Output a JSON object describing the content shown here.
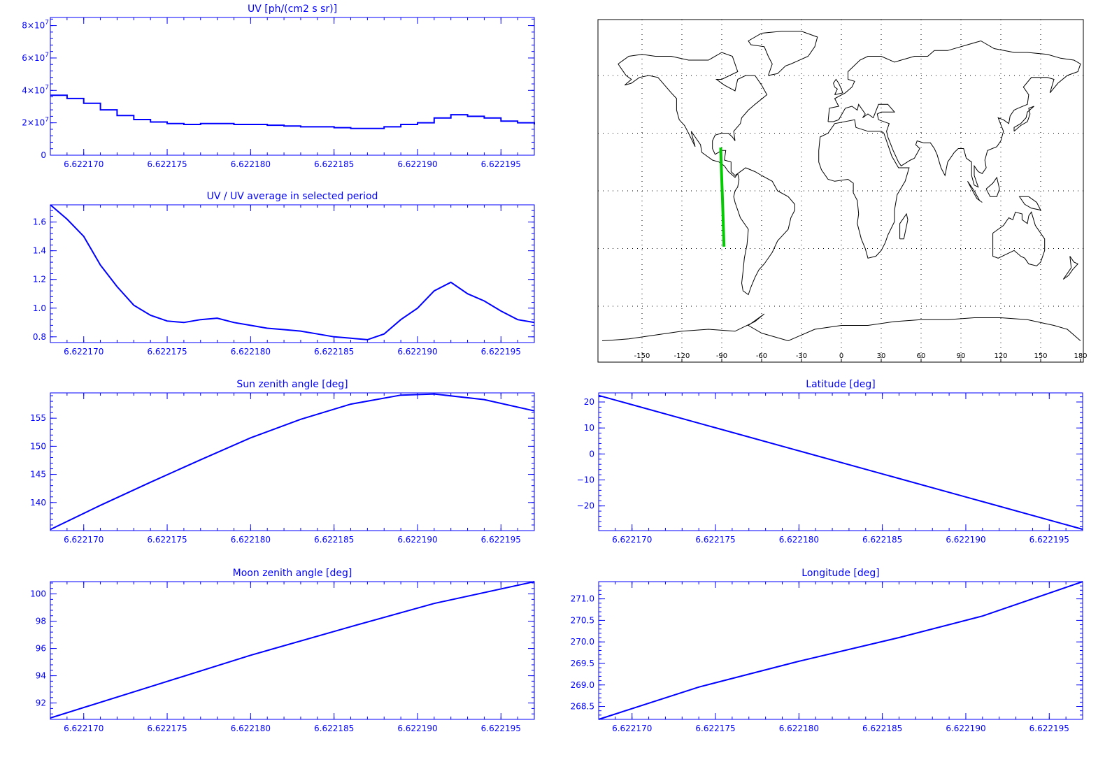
{
  "chart_data": [
    {
      "id": "uv",
      "type": "line",
      "title": "UV [ph/(cm2 s sr)]",
      "xlabel": "",
      "ylabel": "",
      "xlim": [
        6.622168,
        6.622197
      ],
      "ylim": [
        0,
        85000000.0
      ],
      "x_ticks": [
        "6.622170",
        "6.622175",
        "6.622180",
        "6.622185",
        "6.622190",
        "6.622195"
      ],
      "x_tick_values": [
        6.62217,
        6.622175,
        6.62218,
        6.622185,
        6.62219,
        6.622195
      ],
      "y_ticks": [
        {
          "value": 0,
          "base": "0",
          "exp": ""
        },
        {
          "value": 20000000.0,
          "base": "2×10",
          "exp": "7"
        },
        {
          "value": 40000000.0,
          "base": "4×10",
          "exp": "7"
        },
        {
          "value": 60000000.0,
          "base": "6×10",
          "exp": "7"
        },
        {
          "value": 80000000.0,
          "base": "8×10",
          "exp": "7"
        }
      ],
      "x": [
        6.622168,
        6.622169,
        6.62217,
        6.622171,
        6.622172,
        6.622173,
        6.622174,
        6.622175,
        6.622176,
        6.622177,
        6.622178,
        6.622179,
        6.62218,
        6.622181,
        6.622182,
        6.622183,
        6.622184,
        6.622185,
        6.622186,
        6.622187,
        6.622188,
        6.622189,
        6.62219,
        6.622191,
        6.622192,
        6.622193,
        6.622194,
        6.622195,
        6.622196,
        6.622197
      ],
      "y": [
        37000000.0,
        35000000.0,
        32000000.0,
        28000000.0,
        24500000.0,
        22000000.0,
        20500000.0,
        19500000.0,
        19000000.0,
        19500000.0,
        19500000.0,
        19000000.0,
        19000000.0,
        18500000.0,
        18000000.0,
        17500000.0,
        17500000.0,
        17000000.0,
        16500000.0,
        16500000.0,
        17500000.0,
        19000000.0,
        20000000.0,
        23000000.0,
        25000000.0,
        24000000.0,
        23000000.0,
        21000000.0,
        20000000.0,
        19000000.0
      ],
      "step": true,
      "grid": false
    },
    {
      "id": "uv_ratio",
      "type": "line",
      "title": "UV / UV average in selected period",
      "xlabel": "",
      "ylabel": "",
      "xlim": [
        6.622168,
        6.622197
      ],
      "ylim": [
        0.76,
        1.72
      ],
      "x_ticks": [
        "6.622170",
        "6.622175",
        "6.622180",
        "6.622185",
        "6.622190",
        "6.622195"
      ],
      "x_tick_values": [
        6.62217,
        6.622175,
        6.62218,
        6.622185,
        6.62219,
        6.622195
      ],
      "y_ticks": [
        {
          "value": 0.8,
          "base": "0.8",
          "exp": ""
        },
        {
          "value": 1.0,
          "base": "1.0",
          "exp": ""
        },
        {
          "value": 1.2,
          "base": "1.2",
          "exp": ""
        },
        {
          "value": 1.4,
          "base": "1.4",
          "exp": ""
        },
        {
          "value": 1.6,
          "base": "1.6",
          "exp": ""
        }
      ],
      "x": [
        6.622168,
        6.622169,
        6.62217,
        6.622171,
        6.622172,
        6.622173,
        6.622174,
        6.622175,
        6.622176,
        6.622177,
        6.622178,
        6.622179,
        6.62218,
        6.622181,
        6.622182,
        6.622183,
        6.622184,
        6.622185,
        6.622186,
        6.622187,
        6.622188,
        6.622189,
        6.62219,
        6.622191,
        6.622192,
        6.622193,
        6.622194,
        6.622195,
        6.622196,
        6.622197
      ],
      "y": [
        1.72,
        1.62,
        1.5,
        1.3,
        1.15,
        1.02,
        0.95,
        0.91,
        0.9,
        0.92,
        0.93,
        0.9,
        0.88,
        0.86,
        0.85,
        0.84,
        0.82,
        0.8,
        0.79,
        0.78,
        0.82,
        0.92,
        1.0,
        1.12,
        1.18,
        1.1,
        1.05,
        0.98,
        0.92,
        0.9
      ],
      "step": false,
      "grid": false
    },
    {
      "id": "sun_zenith",
      "type": "line",
      "title": "Sun zenith angle [deg]",
      "xlabel": "",
      "ylabel": "",
      "xlim": [
        6.622168,
        6.622197
      ],
      "ylim": [
        135,
        159.5
      ],
      "x_ticks": [
        "6.622170",
        "6.622175",
        "6.622180",
        "6.622185",
        "6.622190",
        "6.622195"
      ],
      "x_tick_values": [
        6.62217,
        6.622175,
        6.62218,
        6.622185,
        6.62219,
        6.622195
      ],
      "y_ticks": [
        {
          "value": 140,
          "base": "140",
          "exp": ""
        },
        {
          "value": 145,
          "base": "145",
          "exp": ""
        },
        {
          "value": 150,
          "base": "150",
          "exp": ""
        },
        {
          "value": 155,
          "base": "155",
          "exp": ""
        }
      ],
      "x": [
        6.622168,
        6.622171,
        6.622174,
        6.622177,
        6.62218,
        6.622183,
        6.622186,
        6.622189,
        6.622191,
        6.622194,
        6.622197
      ],
      "y": [
        135.2,
        139.5,
        143.6,
        147.6,
        151.5,
        154.8,
        157.5,
        159.1,
        159.3,
        158.3,
        156.3
      ],
      "step": false,
      "grid": false
    },
    {
      "id": "latitude",
      "type": "line",
      "title": "Latitude [deg]",
      "xlabel": "",
      "ylabel": "",
      "xlim": [
        6.622168,
        6.622197
      ],
      "ylim": [
        -29.5,
        23.5
      ],
      "x_ticks": [
        "6.622170",
        "6.622175",
        "6.622180",
        "6.622185",
        "6.622190",
        "6.622195"
      ],
      "x_tick_values": [
        6.62217,
        6.622175,
        6.62218,
        6.622185,
        6.62219,
        6.622195
      ],
      "y_ticks": [
        {
          "value": -20,
          "base": "−20",
          "exp": ""
        },
        {
          "value": -10,
          "base": "−10",
          "exp": ""
        },
        {
          "value": 0,
          "base": "0",
          "exp": ""
        },
        {
          "value": 10,
          "base": "10",
          "exp": ""
        },
        {
          "value": 20,
          "base": "20",
          "exp": ""
        }
      ],
      "x": [
        6.622168,
        6.622197
      ],
      "y": [
        22.5,
        -29.0
      ],
      "step": false,
      "grid": false
    },
    {
      "id": "moon_zenith",
      "type": "line",
      "title": "Moon zenith angle [deg]",
      "xlabel": "",
      "ylabel": "",
      "xlim": [
        6.622168,
        6.622197
      ],
      "ylim": [
        90.8,
        100.9
      ],
      "x_ticks": [
        "6.622170",
        "6.622175",
        "6.622180",
        "6.622185",
        "6.622190",
        "6.622195"
      ],
      "x_tick_values": [
        6.62217,
        6.622175,
        6.62218,
        6.622185,
        6.62219,
        6.622195
      ],
      "y_ticks": [
        {
          "value": 92,
          "base": "92",
          "exp": ""
        },
        {
          "value": 94,
          "base": "94",
          "exp": ""
        },
        {
          "value": 96,
          "base": "96",
          "exp": ""
        },
        {
          "value": 98,
          "base": "98",
          "exp": ""
        },
        {
          "value": 100,
          "base": "100",
          "exp": ""
        }
      ],
      "x": [
        6.622168,
        6.622174,
        6.62218,
        6.622186,
        6.622191,
        6.622197
      ],
      "y": [
        90.9,
        93.2,
        95.5,
        97.6,
        99.3,
        100.9
      ],
      "step": false,
      "grid": false
    },
    {
      "id": "longitude",
      "type": "line",
      "title": "Longitude [deg]",
      "xlabel": "",
      "ylabel": "",
      "xlim": [
        6.622168,
        6.622197
      ],
      "ylim": [
        268.2,
        271.4
      ],
      "x_ticks": [
        "6.622170",
        "6.622175",
        "6.622180",
        "6.622185",
        "6.622190",
        "6.622195"
      ],
      "x_tick_values": [
        6.62217,
        6.622175,
        6.62218,
        6.622185,
        6.62219,
        6.622195
      ],
      "y_ticks": [
        {
          "value": 268.5,
          "base": "268.5",
          "exp": ""
        },
        {
          "value": 269.0,
          "base": "269.0",
          "exp": ""
        },
        {
          "value": 269.5,
          "base": "269.5",
          "exp": ""
        },
        {
          "value": 270.0,
          "base": "270.0",
          "exp": ""
        },
        {
          "value": 270.5,
          "base": "270.5",
          "exp": ""
        },
        {
          "value": 271.0,
          "base": "271.0",
          "exp": ""
        }
      ],
      "x": [
        6.622168,
        6.622174,
        6.62218,
        6.622186,
        6.622191,
        6.622197
      ],
      "y": [
        268.2,
        268.95,
        269.55,
        270.1,
        270.6,
        271.4
      ],
      "step": false,
      "grid": false
    }
  ],
  "map": {
    "type": "map",
    "grid": true,
    "x_ticks": [
      "-150",
      "-120",
      "-90",
      "-60",
      "-30",
      "0",
      "30",
      "60",
      "90",
      "120",
      "150",
      "180"
    ],
    "x_tick_values": [
      -150,
      -120,
      -90,
      -60,
      -30,
      0,
      30,
      60,
      90,
      120,
      150,
      180
    ],
    "xlim": [
      -180,
      180
    ],
    "ylim": [
      -90,
      90
    ],
    "track_color": "#00cc00",
    "coast_color": "#000000",
    "track": [
      {
        "lon": -90.8,
        "lat": 22.5
      },
      {
        "lon": -90.2,
        "lat": 10.0
      },
      {
        "lon": -89.6,
        "lat": -2.0
      },
      {
        "lon": -89.0,
        "lat": -14.0
      },
      {
        "lon": -88.3,
        "lat": -29.0
      }
    ]
  },
  "colors": {
    "plot": "#0000ff",
    "background": "#ffffff"
  }
}
